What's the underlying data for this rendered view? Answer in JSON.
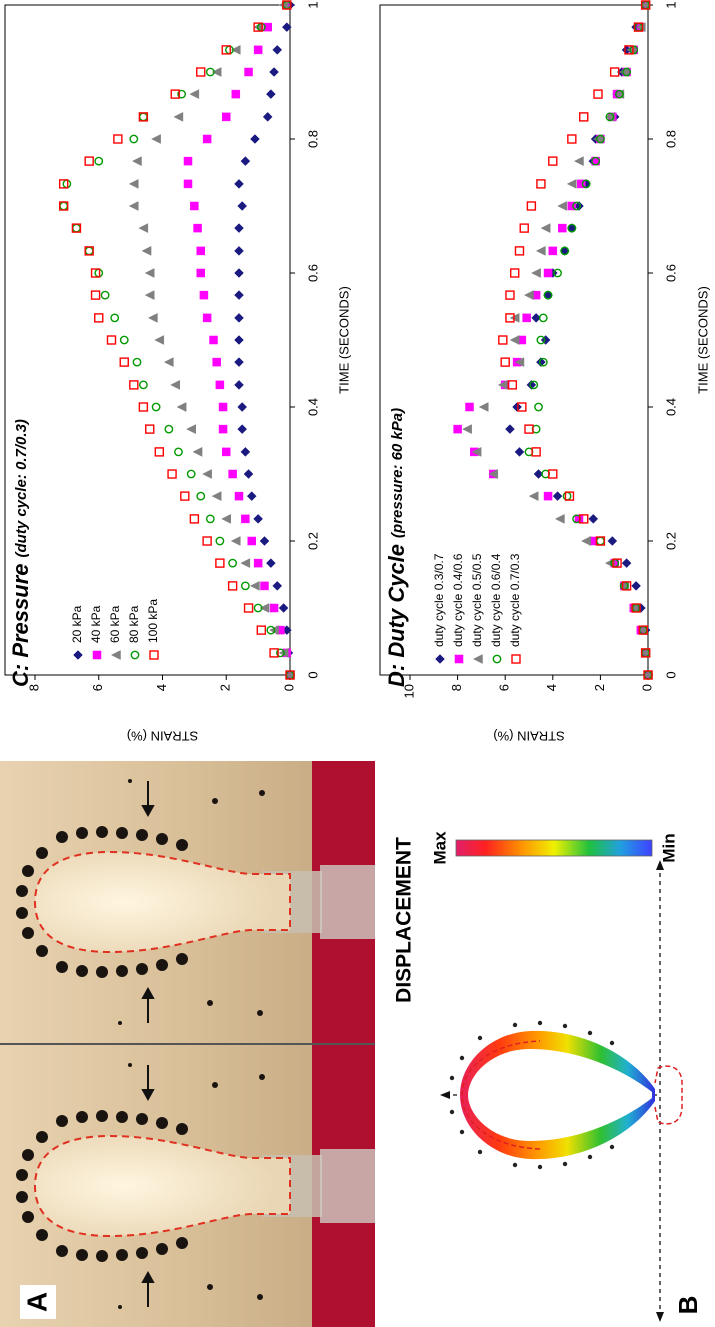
{
  "panel_a": {
    "label": "A"
  },
  "panel_b": {
    "label": "B",
    "colorbar_title": "DISPLACEMENT",
    "max_label": "Max",
    "min_label": "Min"
  },
  "chart_data": [
    {
      "type": "scatter",
      "title": "C: Pressure",
      "subtitle": "(duty cycle: 0.7/0.3)",
      "x_label": "TIME (SECONDS)",
      "y_label": "STRAIN (%)",
      "xlim": [
        0,
        1
      ],
      "xticks": [
        0,
        0.2,
        0.4,
        0.6,
        0.8,
        1
      ],
      "ylim": [
        0,
        8
      ],
      "yticks": [
        0,
        2,
        4,
        6,
        8
      ],
      "x": [
        0,
        0.033,
        0.067,
        0.1,
        0.133,
        0.167,
        0.2,
        0.233,
        0.267,
        0.3,
        0.333,
        0.367,
        0.4,
        0.433,
        0.467,
        0.5,
        0.533,
        0.567,
        0.6,
        0.633,
        0.667,
        0.7,
        0.733,
        0.767,
        0.8,
        0.833,
        0.867,
        0.9,
        0.933,
        0.967,
        1
      ],
      "series": [
        {
          "name": "20 kPa",
          "color": "#1a1a80",
          "marker": "diamond",
          "filled": true,
          "values": [
            0,
            0.05,
            0.1,
            0.2,
            0.4,
            0.6,
            0.8,
            1.0,
            1.2,
            1.3,
            1.4,
            1.5,
            1.5,
            1.6,
            1.6,
            1.6,
            1.6,
            1.6,
            1.6,
            1.6,
            1.6,
            1.5,
            1.6,
            1.4,
            1.1,
            0.7,
            0.6,
            0.5,
            0.4,
            0.1,
            0
          ]
        },
        {
          "name": "40 kPa",
          "color": "#ff00ff",
          "marker": "square",
          "filled": true,
          "values": [
            0,
            0.1,
            0.3,
            0.5,
            0.8,
            1.0,
            1.2,
            1.4,
            1.6,
            1.8,
            2.0,
            2.1,
            2.1,
            2.2,
            2.3,
            2.4,
            2.6,
            2.7,
            2.8,
            2.8,
            2.9,
            3.0,
            3.2,
            3.2,
            2.6,
            2.0,
            1.7,
            1.3,
            1.0,
            0.7,
            0.1
          ]
        },
        {
          "name": "60 kPa",
          "color": "#808080",
          "marker": "triangle",
          "filled": true,
          "values": [
            0,
            0.2,
            0.5,
            0.8,
            1.1,
            1.4,
            1.7,
            2.0,
            2.3,
            2.6,
            2.9,
            3.1,
            3.4,
            3.6,
            3.8,
            4.1,
            4.3,
            4.4,
            4.4,
            4.5,
            4.6,
            4.9,
            4.9,
            4.8,
            4.2,
            3.5,
            3.0,
            2.3,
            1.7,
            1.0,
            0.2
          ]
        },
        {
          "name": "80 kPa",
          "color": "#009900",
          "marker": "circle",
          "filled": false,
          "values": [
            0,
            0.3,
            0.6,
            1.0,
            1.4,
            1.8,
            2.2,
            2.5,
            2.8,
            3.1,
            3.5,
            3.8,
            4.2,
            4.6,
            4.8,
            5.2,
            5.5,
            5.8,
            6.0,
            6.3,
            6.7,
            7.1,
            7.0,
            6.0,
            4.9,
            4.6,
            3.4,
            2.5,
            1.9,
            0.9,
            0.1
          ]
        },
        {
          "name": "100 kPa",
          "color": "#ff0000",
          "marker": "square",
          "filled": false,
          "values": [
            0,
            0.5,
            0.9,
            1.3,
            1.8,
            2.2,
            2.6,
            3.0,
            3.3,
            3.7,
            4.1,
            4.4,
            4.6,
            4.9,
            5.2,
            5.6,
            6.0,
            6.1,
            6.1,
            6.3,
            6.7,
            7.1,
            7.1,
            6.3,
            5.4,
            4.6,
            3.6,
            2.8,
            2.0,
            1.0,
            0.1
          ]
        }
      ]
    },
    {
      "type": "scatter",
      "title": "D: Duty Cycle",
      "subtitle": "(pressure: 60 kPa)",
      "x_label": "TIME (SECONDS)",
      "y_label": "STRAIN (%)",
      "xlim": [
        0,
        1
      ],
      "xticks": [
        0,
        0.2,
        0.4,
        0.6,
        0.8,
        1
      ],
      "ylim": [
        0,
        10
      ],
      "yticks": [
        0,
        2,
        4,
        6,
        8,
        10
      ],
      "x": [
        0,
        0.033,
        0.067,
        0.1,
        0.133,
        0.167,
        0.2,
        0.233,
        0.267,
        0.3,
        0.333,
        0.367,
        0.4,
        0.433,
        0.467,
        0.5,
        0.533,
        0.567,
        0.6,
        0.633,
        0.667,
        0.7,
        0.733,
        0.767,
        0.8,
        0.833,
        0.867,
        0.9,
        0.933,
        0.967,
        1
      ],
      "series": [
        {
          "name": "duty cycle 0.3/0.7",
          "color": "#1a1a80",
          "marker": "diamond",
          "filled": true,
          "values": [
            0,
            0.1,
            0.1,
            0.3,
            0.5,
            0.9,
            1.5,
            2.3,
            3.8,
            4.6,
            5.4,
            5.8,
            5.5,
            4.9,
            4.5,
            4.3,
            4.7,
            4.2,
            4.0,
            3.5,
            3.2,
            2.9,
            2.6,
            2.3,
            2.2,
            1.4,
            1.3,
            1.1,
            0.9,
            0.5,
            0.1
          ]
        },
        {
          "name": "duty cycle 0.4/0.6",
          "color": "#ff00ff",
          "marker": "square",
          "filled": true,
          "values": [
            0,
            0.1,
            0.3,
            0.6,
            1.0,
            1.4,
            2.3,
            2.9,
            4.2,
            6.5,
            7.3,
            8.0,
            7.5,
            6.0,
            5.5,
            5.3,
            5.1,
            4.7,
            4.2,
            4.0,
            3.6,
            3.2,
            2.8,
            2.2,
            2.0,
            1.5,
            1.3,
            0.9,
            0.6,
            0.3,
            0.1
          ]
        },
        {
          "name": "duty cycle 0.5/0.5",
          "color": "#808080",
          "marker": "triangle",
          "filled": true,
          "values": [
            0,
            0.1,
            0.2,
            0.6,
            1.0,
            1.6,
            2.6,
            3.7,
            4.8,
            6.5,
            7.2,
            7.6,
            6.9,
            6.1,
            5.4,
            5.6,
            5.6,
            5.0,
            4.7,
            4.5,
            4.3,
            3.6,
            3.2,
            2.9,
            2.1,
            1.6,
            1.2,
            1.0,
            0.7,
            0.3,
            0.1
          ]
        },
        {
          "name": "duty cycle 0.6/0.4",
          "color": "#009900",
          "marker": "circle",
          "filled": false,
          "values": [
            0,
            0.1,
            0.2,
            0.5,
            1.0,
            1.4,
            2.0,
            3.0,
            3.4,
            4.3,
            5.0,
            4.7,
            4.6,
            4.8,
            4.4,
            4.5,
            4.4,
            4.2,
            3.8,
            3.5,
            3.2,
            3.0,
            2.6,
            2.2,
            2.0,
            1.6,
            1.2,
            0.9,
            0.6,
            0.4,
            0.1
          ]
        },
        {
          "name": "duty cycle 0.7/0.3",
          "color": "#ff0000",
          "marker": "square",
          "filled": false,
          "values": [
            0,
            0.1,
            0.2,
            0.5,
            0.9,
            1.3,
            2.0,
            2.7,
            3.3,
            4.0,
            4.7,
            5.0,
            5.3,
            5.7,
            6.0,
            6.1,
            5.8,
            5.8,
            5.6,
            5.4,
            5.2,
            4.9,
            4.5,
            4.0,
            3.2,
            2.7,
            2.1,
            1.4,
            0.8,
            0.4,
            0.1
          ]
        }
      ]
    }
  ]
}
